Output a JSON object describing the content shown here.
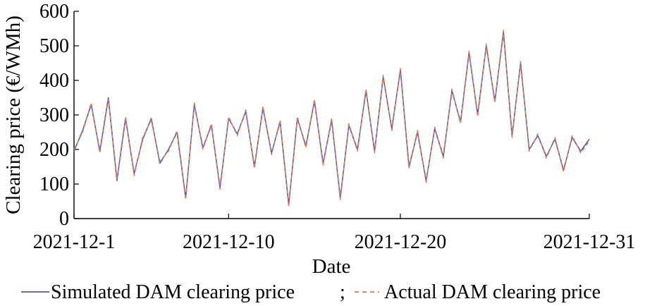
{
  "chart_data": {
    "type": "line",
    "title": "",
    "xlabel": "Date",
    "ylabel": "Clearing price (€/WMh)",
    "xlim": [
      "2021-12-01",
      "2021-12-31"
    ],
    "ylim": [
      0,
      600
    ],
    "x_tick_labels": [
      "2021-12-1",
      "2021-12-10",
      "2021-12-20",
      "2021-12-31"
    ],
    "y_tick_labels": [
      "0",
      "100",
      "200",
      "300",
      "400",
      "500",
      "600"
    ],
    "grid": false,
    "legend_position": "bottom",
    "legend_separator": ";",
    "series": [
      {
        "name": "Simulated DAM clearing price",
        "color": "#4a5fb5",
        "line_style": "solid",
        "x": [
          "2021-12-01",
          "2021-12-01 12:00",
          "2021-12-02",
          "2021-12-02 12:00",
          "2021-12-03",
          "2021-12-03 12:00",
          "2021-12-04",
          "2021-12-04 12:00",
          "2021-12-05",
          "2021-12-05 12:00",
          "2021-12-06",
          "2021-12-06 12:00",
          "2021-12-07",
          "2021-12-07 12:00",
          "2021-12-08",
          "2021-12-08 12:00",
          "2021-12-09",
          "2021-12-09 12:00",
          "2021-12-10",
          "2021-12-10 12:00",
          "2021-12-11",
          "2021-12-11 12:00",
          "2021-12-12",
          "2021-12-12 12:00",
          "2021-12-13",
          "2021-12-13 12:00",
          "2021-12-14",
          "2021-12-14 12:00",
          "2021-12-15",
          "2021-12-15 12:00",
          "2021-12-16",
          "2021-12-16 12:00",
          "2021-12-17",
          "2021-12-17 12:00",
          "2021-12-18",
          "2021-12-18 12:00",
          "2021-12-19",
          "2021-12-19 12:00",
          "2021-12-20",
          "2021-12-20 12:00",
          "2021-12-21",
          "2021-12-21 12:00",
          "2021-12-22",
          "2021-12-22 12:00",
          "2021-12-23",
          "2021-12-23 12:00",
          "2021-12-24",
          "2021-12-24 12:00",
          "2021-12-25",
          "2021-12-25 12:00",
          "2021-12-26",
          "2021-12-26 12:00",
          "2021-12-27",
          "2021-12-27 12:00",
          "2021-12-28",
          "2021-12-28 12:00",
          "2021-12-29",
          "2021-12-29 12:00",
          "2021-12-30",
          "2021-12-30 12:00",
          "2021-12-31"
        ],
        "values": [
          195,
          255,
          330,
          195,
          350,
          110,
          290,
          130,
          230,
          290,
          160,
          200,
          250,
          60,
          330,
          205,
          270,
          90,
          290,
          245,
          310,
          150,
          320,
          190,
          280,
          40,
          290,
          210,
          340,
          160,
          285,
          60,
          270,
          200,
          370,
          195,
          410,
          260,
          430,
          150,
          250,
          110,
          260,
          180,
          370,
          280,
          480,
          300,
          500,
          340,
          540,
          240,
          450,
          200,
          240,
          180,
          230,
          140,
          235,
          195,
          230
        ]
      },
      {
        "name": "Actual DAM clearing price",
        "color": "#e8765a",
        "line_style": "dashed",
        "x": [
          "2021-12-01",
          "2021-12-01 12:00",
          "2021-12-02",
          "2021-12-02 12:00",
          "2021-12-03",
          "2021-12-03 12:00",
          "2021-12-04",
          "2021-12-04 12:00",
          "2021-12-05",
          "2021-12-05 12:00",
          "2021-12-06",
          "2021-12-06 12:00",
          "2021-12-07",
          "2021-12-07 12:00",
          "2021-12-08",
          "2021-12-08 12:00",
          "2021-12-09",
          "2021-12-09 12:00",
          "2021-12-10",
          "2021-12-10 12:00",
          "2021-12-11",
          "2021-12-11 12:00",
          "2021-12-12",
          "2021-12-12 12:00",
          "2021-12-13",
          "2021-12-13 12:00",
          "2021-12-14",
          "2021-12-14 12:00",
          "2021-12-15",
          "2021-12-15 12:00",
          "2021-12-16",
          "2021-12-16 12:00",
          "2021-12-17",
          "2021-12-17 12:00",
          "2021-12-18",
          "2021-12-18 12:00",
          "2021-12-19",
          "2021-12-19 12:00",
          "2021-12-20",
          "2021-12-20 12:00",
          "2021-12-21",
          "2021-12-21 12:00",
          "2021-12-22",
          "2021-12-22 12:00",
          "2021-12-23",
          "2021-12-23 12:00",
          "2021-12-24",
          "2021-12-24 12:00",
          "2021-12-25",
          "2021-12-25 12:00",
          "2021-12-26",
          "2021-12-26 12:00",
          "2021-12-27",
          "2021-12-27 12:00",
          "2021-12-28",
          "2021-12-28 12:00",
          "2021-12-29",
          "2021-12-29 12:00",
          "2021-12-30",
          "2021-12-30 12:00",
          "2021-12-31"
        ],
        "values": [
          200,
          250,
          335,
          190,
          345,
          115,
          295,
          125,
          235,
          285,
          165,
          195,
          255,
          55,
          335,
          200,
          275,
          85,
          295,
          240,
          315,
          145,
          325,
          185,
          285,
          35,
          295,
          205,
          345,
          155,
          290,
          55,
          275,
          195,
          375,
          190,
          415,
          255,
          435,
          145,
          255,
          105,
          265,
          175,
          375,
          275,
          485,
          295,
          505,
          335,
          545,
          235,
          455,
          195,
          245,
          175,
          235,
          135,
          240,
          190,
          225
        ]
      }
    ]
  }
}
